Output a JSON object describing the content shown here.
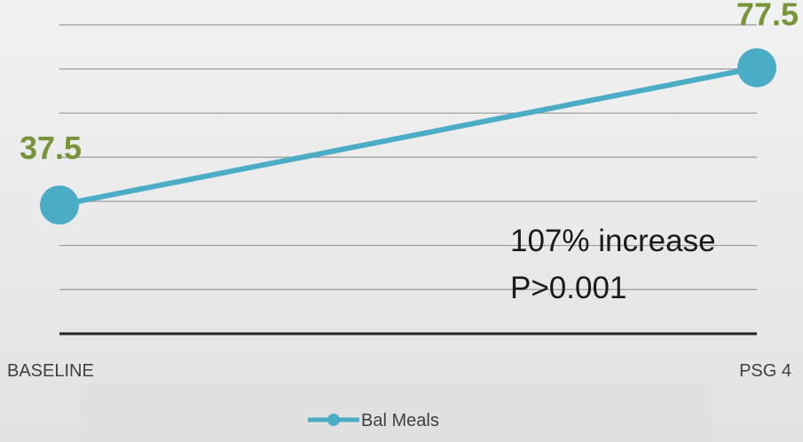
{
  "colors": {
    "series": "#4bacc6",
    "data_label": "#77933c",
    "gridline": "#9a9a9a",
    "baseline_axis": "#222222",
    "legend_bg": "#e0e0e0"
  },
  "chart_data": {
    "type": "line",
    "categories": [
      "BASELINE",
      "PSG 4"
    ],
    "series": [
      {
        "name": "Bal Meals",
        "values": [
          37.5,
          77.5
        ]
      }
    ],
    "data_labels": [
      "37.5",
      "77.5"
    ],
    "ylim": [
      0,
      90
    ],
    "grid": true,
    "legend": "bottom",
    "annotation": [
      "107% increase",
      "P>0.001"
    ],
    "title": "",
    "xlabel": "",
    "ylabel": ""
  }
}
